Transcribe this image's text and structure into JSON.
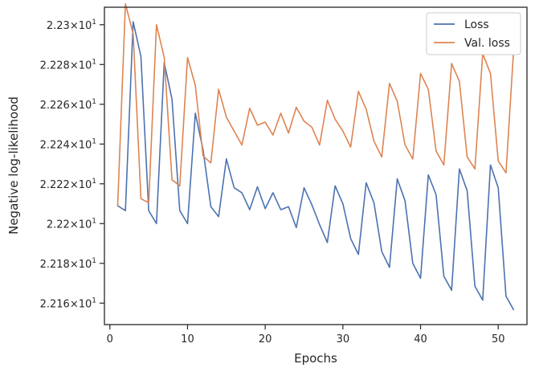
{
  "chart_data": {
    "type": "line",
    "title": "",
    "xlabel": "Epochs",
    "ylabel": "Negative log-likelihood",
    "xlim": [
      -0.7,
      53.7
    ],
    "ylim": [
      22.1492,
      22.3088
    ],
    "x_ticks": [
      0,
      10,
      20,
      30,
      40,
      50
    ],
    "y_ticks": [
      22.16,
      22.18,
      22.2,
      22.22,
      22.24,
      22.26,
      22.28,
      22.3
    ],
    "y_tick_labels": [
      {
        "base": "2.216",
        "exp": "1"
      },
      {
        "base": "2.218",
        "exp": "1"
      },
      {
        "base": "2.22",
        "exp": "1"
      },
      {
        "base": "2.222",
        "exp": "1"
      },
      {
        "base": "2.224",
        "exp": "1"
      },
      {
        "base": "2.226",
        "exp": "1"
      },
      {
        "base": "2.228",
        "exp": "1"
      },
      {
        "base": "2.23",
        "exp": "1"
      }
    ],
    "y_tick_times": "×10",
    "grid": false,
    "legend_position": "top-right",
    "x": [
      1,
      2,
      3,
      4,
      5,
      6,
      7,
      8,
      9,
      10,
      11,
      12,
      13,
      14,
      15,
      16,
      17,
      18,
      19,
      20,
      21,
      22,
      23,
      24,
      25,
      26,
      27,
      28,
      29,
      30,
      31,
      32,
      33,
      34,
      35,
      36,
      37,
      38,
      39,
      40,
      41,
      42,
      43,
      44,
      45,
      46,
      47,
      48,
      49,
      50,
      51,
      52
    ],
    "series": [
      {
        "name": "Loss",
        "color": "#4c72b0",
        "values": [
          22.209,
          22.2065,
          22.3015,
          22.284,
          22.2065,
          22.2,
          22.281,
          22.2625,
          22.2065,
          22.2,
          22.2555,
          22.237,
          22.2085,
          22.2035,
          22.2325,
          22.218,
          22.2155,
          22.207,
          22.2185,
          22.2075,
          22.2155,
          22.207,
          22.2085,
          22.198,
          22.218,
          22.2095,
          22.1995,
          22.1905,
          22.219,
          22.21,
          22.1925,
          22.1845,
          22.2205,
          22.2105,
          22.186,
          22.178,
          22.2225,
          22.2115,
          22.18,
          22.1725,
          22.2245,
          22.2145,
          22.1735,
          22.1665,
          22.2275,
          22.2165,
          22.1685,
          22.1615,
          22.2295,
          22.218,
          22.1635,
          22.1565
        ]
      },
      {
        "name": "Val. loss",
        "color": "#dd8452",
        "values": [
          22.2085,
          22.3105,
          22.2955,
          22.2125,
          22.2105,
          22.3,
          22.2835,
          22.222,
          22.219,
          22.2835,
          22.2695,
          22.234,
          22.2305,
          22.2675,
          22.2535,
          22.2465,
          22.2395,
          22.258,
          22.2495,
          22.251,
          22.2445,
          22.2555,
          22.2455,
          22.2585,
          22.2515,
          22.2485,
          22.2395,
          22.262,
          22.2525,
          22.2465,
          22.2385,
          22.2665,
          22.2575,
          22.2415,
          22.2335,
          22.2705,
          22.2615,
          22.2395,
          22.2325,
          22.2755,
          22.2675,
          22.2365,
          22.2295,
          22.2805,
          22.2715,
          22.2335,
          22.2275,
          22.2855,
          22.2755,
          22.2315,
          22.2255,
          22.2885
        ]
      }
    ]
  }
}
